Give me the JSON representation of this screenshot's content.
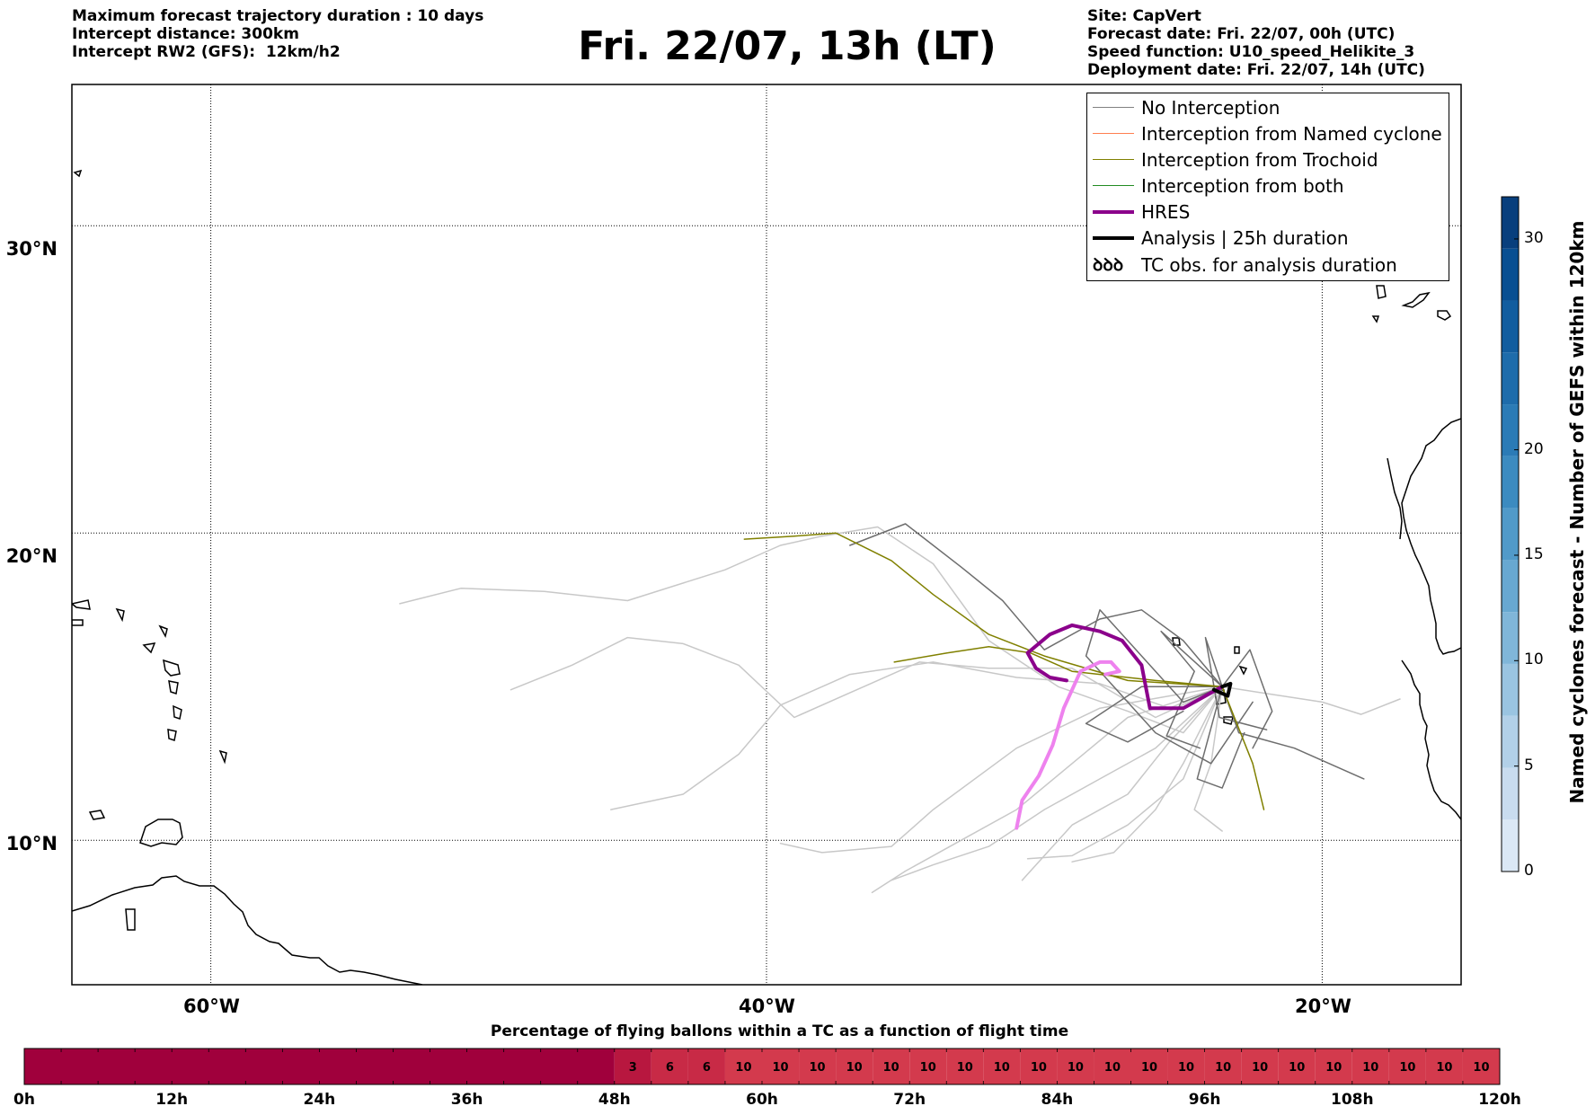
{
  "header": {
    "left_lines": [
      "Maximum forecast trajectory duration : 10 days",
      "Intercept distance: 300km",
      "Intercept RW2 (GFS):  12km/h2"
    ],
    "title": "Fri. 22/07, 13h (LT)",
    "right_lines": [
      "Site: CapVert",
      "Forecast date: Fri. 22/07, 00h (UTC)",
      "Speed function: U10_speed_Helikite_3",
      "Deployment date: Fri. 22/07, 14h (UTC)"
    ]
  },
  "map": {
    "lon_range": [
      -65,
      -15
    ],
    "lat_range": [
      5.3,
      34.6
    ],
    "lat_grid": [
      10,
      20,
      30
    ],
    "lon_grid": [
      -60,
      -40,
      -20
    ],
    "lat_labels": [
      "10°N",
      "20°N",
      "30°N"
    ],
    "lon_labels": [
      "60°W",
      "40°W",
      "20°W"
    ],
    "site": {
      "lon": -23.6,
      "lat": 15.0
    },
    "trajectories_no_interception": [
      [
        [
          -23.6,
          15.0
        ],
        [
          -25,
          13.5
        ],
        [
          -27,
          14.2
        ],
        [
          -29.5,
          15.0
        ],
        [
          -32,
          16.5
        ],
        [
          -34,
          19
        ],
        [
          -36,
          20.2
        ],
        [
          -38,
          19.9
        ],
        [
          -39.5,
          19.6
        ],
        [
          -41.5,
          18.8
        ],
        [
          -45,
          17.8
        ],
        [
          -48,
          18.1
        ],
        [
          -51,
          18.2
        ],
        [
          -53.2,
          17.7
        ]
      ],
      [
        [
          -23.6,
          15.0
        ],
        [
          -25.5,
          14.3
        ],
        [
          -28,
          15.1
        ],
        [
          -31,
          15.3
        ],
        [
          -34,
          15.8
        ],
        [
          -37,
          15.4
        ],
        [
          -39.5,
          14.4
        ],
        [
          -41,
          12.8
        ],
        [
          -43,
          11.5
        ],
        [
          -45.6,
          11.0
        ]
      ],
      [
        [
          -23.6,
          15.0
        ],
        [
          -26,
          14.0
        ],
        [
          -29,
          15.6
        ],
        [
          -32,
          15.6
        ],
        [
          -34.5,
          15.8
        ],
        [
          -37,
          14.8
        ],
        [
          -39,
          14.0
        ],
        [
          -41,
          15.7
        ],
        [
          -43,
          16.4
        ],
        [
          -45,
          16.6
        ],
        [
          -47,
          15.7
        ],
        [
          -49.2,
          14.9
        ]
      ],
      [
        [
          -23.6,
          15.0
        ],
        [
          -20,
          14.5
        ],
        [
          -18.6,
          14.1
        ],
        [
          -17.2,
          14.6
        ]
      ],
      [
        [
          -23.6,
          15.0
        ],
        [
          -27,
          14.0
        ],
        [
          -29,
          12.5
        ],
        [
          -31,
          11.0
        ],
        [
          -33,
          10.0
        ],
        [
          -35,
          9.0
        ],
        [
          -36.2,
          8.3
        ]
      ],
      [
        [
          -23.6,
          15.0
        ],
        [
          -26,
          13.0
        ],
        [
          -28,
          12.0
        ],
        [
          -30,
          11.0
        ],
        [
          -32,
          9.8
        ],
        [
          -34,
          9.2
        ],
        [
          -35.5,
          8.7
        ]
      ],
      [
        [
          -23.6,
          15.0
        ],
        [
          -25.5,
          13.2
        ],
        [
          -27,
          11.5
        ],
        [
          -29,
          10.5
        ],
        [
          -30.8,
          8.7
        ]
      ],
      [
        [
          -23.6,
          15.0
        ],
        [
          -25,
          12.0
        ],
        [
          -27,
          10.5
        ],
        [
          -29,
          9.5
        ],
        [
          -30.6,
          9.4
        ]
      ],
      [
        [
          -23.6,
          15.0
        ],
        [
          -25,
          12.5
        ],
        [
          -26,
          11.0
        ],
        [
          -27.5,
          9.6
        ],
        [
          -29,
          9.3
        ]
      ],
      [
        [
          -23.6,
          15.0
        ],
        [
          -28,
          14.3
        ],
        [
          -31,
          13.0
        ],
        [
          -34,
          11.0
        ],
        [
          -35.5,
          9.8
        ],
        [
          -38,
          9.6
        ],
        [
          -39.5,
          9.9
        ]
      ],
      [
        [
          -23.6,
          15.0
        ],
        [
          -24,
          12.5
        ],
        [
          -24.6,
          11.0
        ],
        [
          -23.6,
          10.3
        ]
      ]
    ],
    "trajectories_dark": [
      [
        [
          -23.6,
          15.0
        ],
        [
          -25,
          16.5
        ],
        [
          -26.5,
          17.5
        ],
        [
          -28,
          17.2
        ],
        [
          -30,
          16.2
        ],
        [
          -31.5,
          17.8
        ],
        [
          -33,
          18.9
        ],
        [
          -35,
          20.3
        ],
        [
          -37,
          19.6
        ]
      ],
      [
        [
          -23.6,
          15.0
        ],
        [
          -23,
          13.5
        ],
        [
          -21,
          13.0
        ],
        [
          -18.5,
          12.0
        ]
      ],
      [
        [
          -23.6,
          15.0
        ],
        [
          -25,
          14.5
        ],
        [
          -27,
          16.5
        ],
        [
          -28,
          17.5
        ],
        [
          -28.5,
          16.0
        ],
        [
          -26,
          13.5
        ],
        [
          -24,
          12.5
        ],
        [
          -22.5,
          14.5
        ]
      ],
      [
        [
          -23.6,
          15.0
        ],
        [
          -24.5,
          12.0
        ],
        [
          -23.6,
          11.7
        ],
        [
          -22.8,
          13.5
        ]
      ],
      [
        [
          -23.6,
          15.0
        ],
        [
          -22.6,
          16.2
        ],
        [
          -21.8,
          14.2
        ],
        [
          -22.5,
          13.0
        ]
      ],
      [
        [
          -23.6,
          15.0
        ],
        [
          -26.5,
          15.0
        ],
        [
          -28.5,
          13.8
        ],
        [
          -27,
          13.2
        ],
        [
          -25,
          14.2
        ]
      ],
      [
        [
          -23.6,
          15.0
        ],
        [
          -25.8,
          16.8
        ],
        [
          -24.6,
          15.5
        ],
        [
          -25.6,
          13.4
        ],
        [
          -24.4,
          13.0
        ]
      ],
      [
        [
          -23.6,
          15.0
        ],
        [
          -24.2,
          16.6
        ],
        [
          -23.7,
          14.0
        ],
        [
          -22.0,
          13.6
        ]
      ]
    ],
    "trajectories_trochoid": [
      [
        [
          -23.6,
          15.0
        ],
        [
          -27,
          15.2
        ],
        [
          -30,
          16.0
        ],
        [
          -32,
          16.7
        ],
        [
          -34,
          18.0
        ],
        [
          -35.5,
          19.1
        ],
        [
          -37.5,
          20.0
        ],
        [
          -39,
          19.9
        ],
        [
          -40.8,
          19.8
        ]
      ],
      [
        [
          -23.6,
          15.0
        ],
        [
          -26,
          15.2
        ],
        [
          -29,
          15.5
        ],
        [
          -30.5,
          16.1
        ],
        [
          -32,
          16.3
        ],
        [
          -33.5,
          16.1
        ],
        [
          -35.4,
          15.8
        ]
      ],
      [
        [
          -23.6,
          15.0
        ],
        [
          -22.5,
          12.5
        ],
        [
          -22.1,
          11.0
        ]
      ]
    ],
    "trajectory_hres": [
      [
        -23.6,
        15.0
      ],
      [
        -25,
        14.3
      ],
      [
        -26.2,
        14.3
      ],
      [
        -26.5,
        15.7
      ],
      [
        -27.2,
        16.5
      ],
      [
        -28,
        16.8
      ],
      [
        -29,
        17.0
      ],
      [
        -29.8,
        16.7
      ],
      [
        -30.6,
        16.1
      ],
      [
        -30.3,
        15.6
      ],
      [
        -29.8,
        15.3
      ],
      [
        -29.2,
        15.2
      ]
    ],
    "trajectory_analysis": [
      [
        -23.6,
        15.0
      ],
      [
        -23.3,
        15.1
      ],
      [
        -23.4,
        14.7
      ],
      [
        -23.9,
        14.9
      ]
    ],
    "trajectory_pink": [
      [
        -31.0,
        10.4
      ],
      [
        -30.8,
        11.3
      ],
      [
        -30.2,
        12.1
      ],
      [
        -29.7,
        13.1
      ],
      [
        -29.3,
        14.3
      ],
      [
        -28.7,
        15.5
      ],
      [
        -28.0,
        15.8
      ],
      [
        -27.6,
        15.8
      ],
      [
        -27.3,
        15.5
      ],
      [
        -27.8,
        15.4
      ]
    ]
  },
  "legend": {
    "items": [
      {
        "label": "No Interception",
        "color": "#808080",
        "width": 1.5
      },
      {
        "label": "Interception from Named cyclone",
        "color": "#ff7f50",
        "width": 1.5
      },
      {
        "label": "Interception from Trochoid",
        "color": "#808000",
        "width": 1.5
      },
      {
        "label": "Interception from both",
        "color": "#228b22",
        "width": 1.5
      },
      {
        "label": "HRES",
        "color": "#8b008b",
        "width": 4
      },
      {
        "label": "Analysis | 25h duration",
        "color": "#000000",
        "width": 4
      },
      {
        "label": "TC obs. for analysis duration",
        "color": "#000000",
        "width": 0,
        "symbol": "ꝺꝺꝺ"
      }
    ]
  },
  "colorbar": {
    "title": "Named cyclones forecast - Number of GEFS within 120km",
    "min": 0,
    "max": 32,
    "ticks": [
      0,
      5,
      10,
      15,
      20,
      30
    ],
    "colors": [
      "#dbe8f5",
      "#c9dcef",
      "#b2d0e8",
      "#9ac4e1",
      "#80b6d9",
      "#68a8d1",
      "#519ac9",
      "#3c8bc0",
      "#2b7bb6",
      "#1e6cab",
      "#125d9f",
      "#084f92",
      "#083f7d"
    ]
  },
  "flight_bar": {
    "title": "Percentage of flying ballons within a TC as a function of flight time",
    "tick_labels": [
      "0h",
      "12h",
      "24h",
      "36h",
      "48h",
      "60h",
      "72h",
      "84h",
      "96h",
      "108h",
      "120h"
    ],
    "zero_color": "#a0003c",
    "cells": [
      {
        "from": 48,
        "to": 51,
        "value": "3",
        "color": "#b8173f"
      },
      {
        "from": 51,
        "to": 54,
        "value": "6",
        "color": "#c82a46"
      },
      {
        "from": 54,
        "to": 57,
        "value": "6",
        "color": "#c82a46"
      },
      {
        "from": 57,
        "to": 60,
        "value": "10",
        "color": "#d33a4d"
      },
      {
        "from": 60,
        "to": 63,
        "value": "10",
        "color": "#d33a4d"
      },
      {
        "from": 63,
        "to": 66,
        "value": "10",
        "color": "#d33a4d"
      },
      {
        "from": 66,
        "to": 69,
        "value": "10",
        "color": "#d33a4d"
      },
      {
        "from": 69,
        "to": 72,
        "value": "10",
        "color": "#d33a4d"
      },
      {
        "from": 72,
        "to": 75,
        "value": "10",
        "color": "#d33a4d"
      },
      {
        "from": 75,
        "to": 78,
        "value": "10",
        "color": "#d33a4d"
      },
      {
        "from": 78,
        "to": 81,
        "value": "10",
        "color": "#d33a4d"
      },
      {
        "from": 81,
        "to": 84,
        "value": "10",
        "color": "#d33a4d"
      },
      {
        "from": 84,
        "to": 87,
        "value": "10",
        "color": "#d33a4d"
      },
      {
        "from": 87,
        "to": 90,
        "value": "10",
        "color": "#d33a4d"
      },
      {
        "from": 90,
        "to": 93,
        "value": "10",
        "color": "#d33a4d"
      },
      {
        "from": 93,
        "to": 96,
        "value": "10",
        "color": "#d33a4d"
      },
      {
        "from": 96,
        "to": 99,
        "value": "10",
        "color": "#d33a4d"
      },
      {
        "from": 99,
        "to": 102,
        "value": "10",
        "color": "#d33a4d"
      },
      {
        "from": 102,
        "to": 105,
        "value": "10",
        "color": "#d33a4d"
      },
      {
        "from": 105,
        "to": 108,
        "value": "10",
        "color": "#d33a4d"
      },
      {
        "from": 108,
        "to": 111,
        "value": "10",
        "color": "#d33a4d"
      },
      {
        "from": 111,
        "to": 114,
        "value": "10",
        "color": "#d33a4d"
      },
      {
        "from": 114,
        "to": 117,
        "value": "10",
        "color": "#d33a4d"
      },
      {
        "from": 117,
        "to": 120,
        "value": "10",
        "color": "#d33a4d"
      }
    ]
  }
}
